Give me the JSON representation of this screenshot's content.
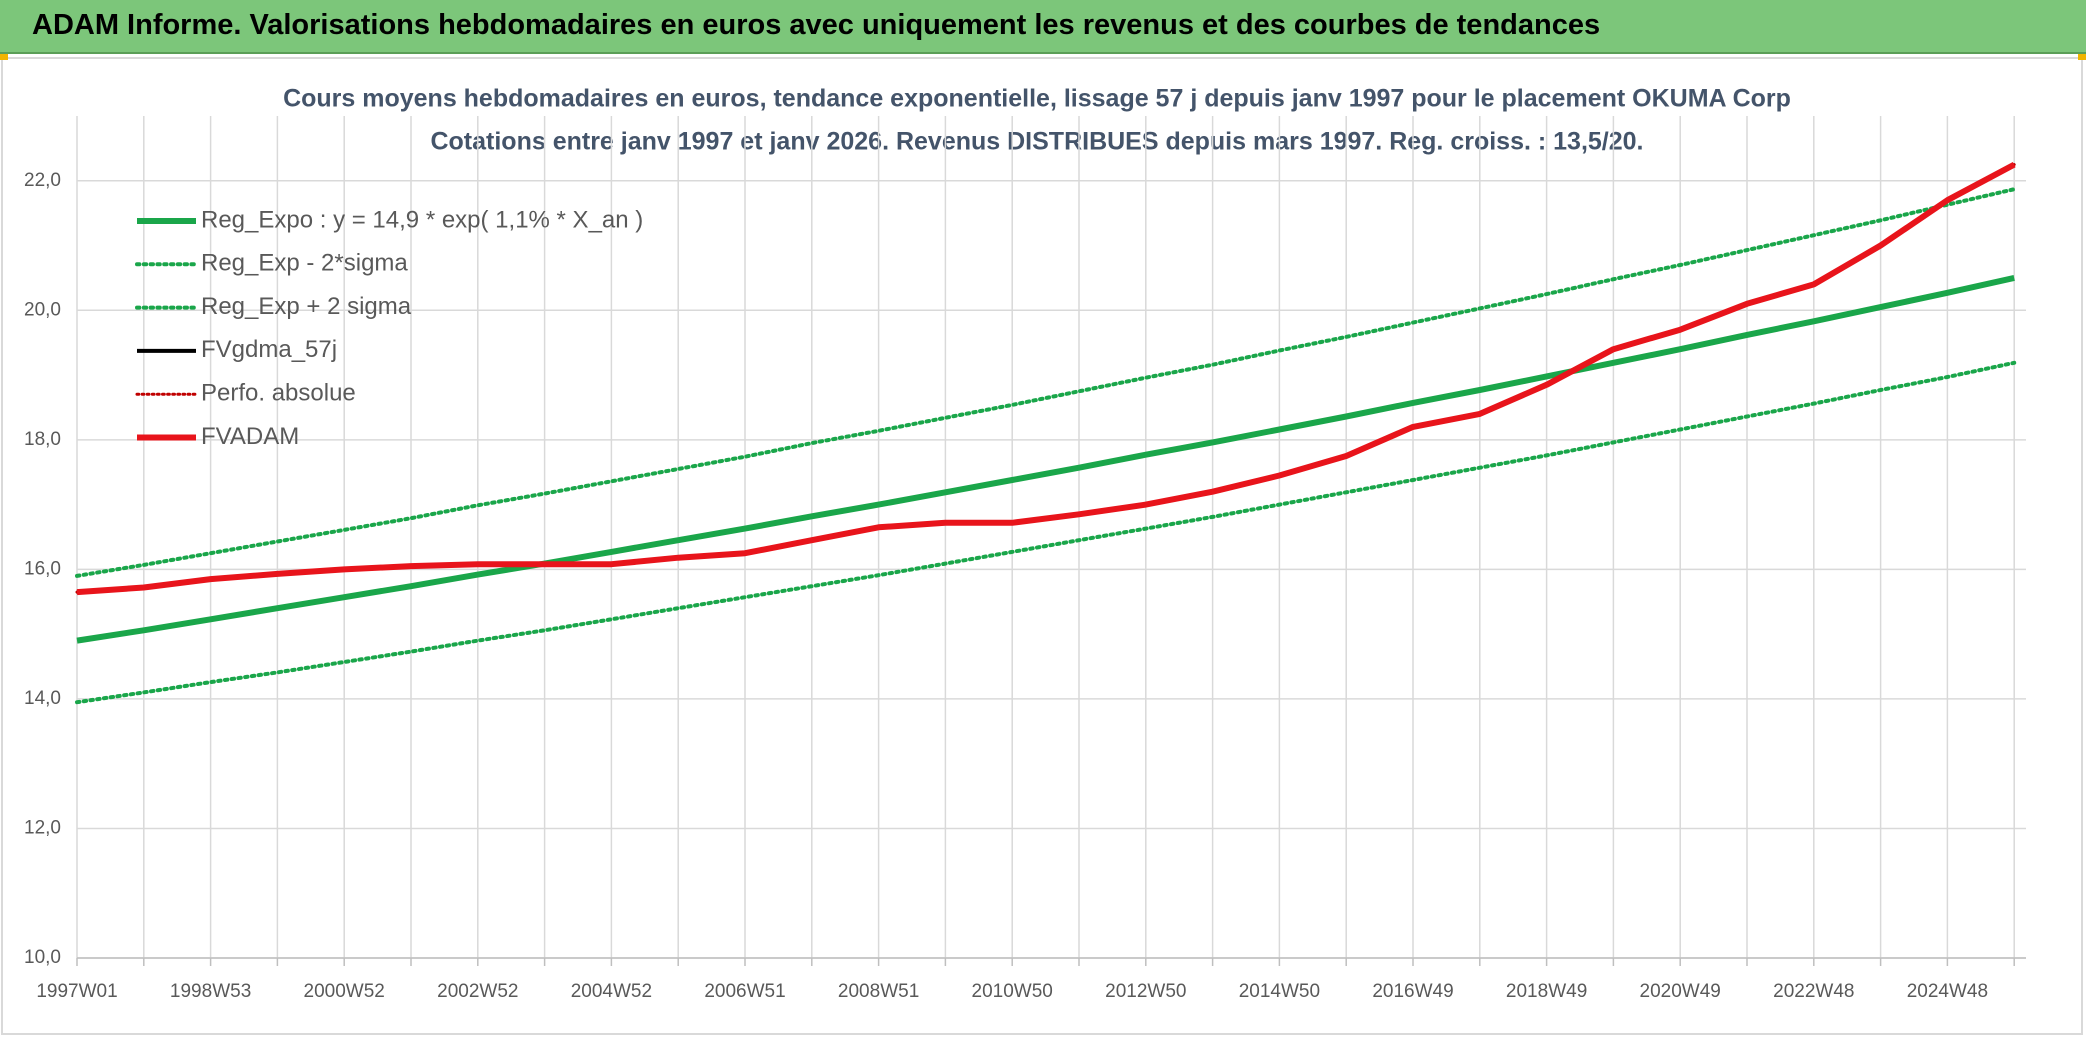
{
  "header": {
    "title": "ADAM Informe. Valorisations hebdomadaires en euros avec uniquement les revenus et des courbes de tendances"
  },
  "chart_data": {
    "type": "line",
    "title": "Cours moyens hebdomadaires en euros, tendance exponentielle, lissage 57 j depuis janv 1997 pour le placement OKUMA Corp",
    "subtitle": "Cotations entre janv 1997 et janv 2026. Revenus DISTRIBUES depuis mars 1997. Reg. croiss. : 13,5/20.",
    "categories": [
      "1997W01",
      null,
      "1998W53",
      null,
      "2000W52",
      null,
      "2002W52",
      null,
      "2004W52",
      null,
      "2006W51",
      null,
      "2008W51",
      null,
      "2010W50",
      null,
      "2012W50",
      null,
      "2014W50",
      null,
      "2016W49",
      null,
      "2018W49",
      null,
      "2020W49",
      null,
      "2022W48",
      null,
      "2024W48",
      null
    ],
    "ylim": [
      10,
      23
    ],
    "yticks": [
      {
        "value": 10,
        "label": "10,0"
      },
      {
        "value": 12,
        "label": "12,0"
      },
      {
        "value": 14,
        "label": "14,0"
      },
      {
        "value": 16,
        "label": "16,0"
      },
      {
        "value": 18,
        "label": "18,0"
      },
      {
        "value": 20,
        "label": "20,0"
      },
      {
        "value": 22,
        "label": "22,0"
      }
    ],
    "grid": true,
    "legend": "top-left",
    "series": [
      {
        "name": "Reg_Expo : y = 14,9 * exp( 1,1% *  X_an )",
        "color": "#1aa64a",
        "line_style": "solid",
        "width": 6,
        "values": [
          14.9,
          15.06,
          15.23,
          15.4,
          15.57,
          15.74,
          15.92,
          16.09,
          16.27,
          16.45,
          16.63,
          16.82,
          17.0,
          17.19,
          17.38,
          17.57,
          17.77,
          17.96,
          18.16,
          18.36,
          18.57,
          18.77,
          18.98,
          19.19,
          19.4,
          19.62,
          19.83,
          20.05,
          20.27,
          20.5
        ]
      },
      {
        "name": "Reg_Exp - 2*sigma",
        "color": "#1aa64a",
        "line_style": "dotted",
        "width": 4,
        "values": [
          13.95,
          14.1,
          14.26,
          14.41,
          14.57,
          14.73,
          14.9,
          15.06,
          15.23,
          15.4,
          15.57,
          15.74,
          15.91,
          16.09,
          16.27,
          16.45,
          16.63,
          16.81,
          17.0,
          17.19,
          17.38,
          17.57,
          17.76,
          17.96,
          18.16,
          18.36,
          18.56,
          18.77,
          18.97,
          19.19
        ]
      },
      {
        "name": "Reg_Exp + 2 sigma",
        "color": "#1aa64a",
        "line_style": "dotted",
        "width": 4,
        "values": [
          15.9,
          16.07,
          16.25,
          16.43,
          16.61,
          16.79,
          16.99,
          17.17,
          17.36,
          17.55,
          17.74,
          17.95,
          18.14,
          18.34,
          18.54,
          18.75,
          18.96,
          19.16,
          19.38,
          19.59,
          19.81,
          20.03,
          20.25,
          20.48,
          20.7,
          20.93,
          21.16,
          21.39,
          21.63,
          21.87
        ]
      },
      {
        "name": "FVgdma_57j",
        "color": "#000000",
        "line_style": "solid",
        "width": 4,
        "values": [
          15.65,
          15.72,
          15.85,
          15.93,
          16.0,
          16.05,
          16.08,
          16.08,
          16.08,
          16.18,
          16.25,
          16.45,
          16.65,
          16.72,
          16.72,
          16.85,
          17.0,
          17.2,
          17.45,
          17.75,
          18.2,
          18.4,
          18.85,
          19.4,
          19.7,
          20.1,
          20.4,
          21.0,
          21.7,
          22.25
        ]
      },
      {
        "name": "Perfo. absolue",
        "color": "#c00000",
        "line_style": "dotted",
        "width": 3,
        "values": [
          15.65,
          15.72,
          15.85,
          15.93,
          16.0,
          16.05,
          16.08,
          16.08,
          16.08,
          16.18,
          16.25,
          16.45,
          16.65,
          16.72,
          16.72,
          16.85,
          17.0,
          17.2,
          17.45,
          17.75,
          18.2,
          18.4,
          18.85,
          19.4,
          19.7,
          20.1,
          20.4,
          21.0,
          21.7,
          22.25
        ]
      },
      {
        "name": "FVADAM",
        "color": "#e8141b",
        "line_style": "solid",
        "width": 6,
        "values": [
          15.65,
          15.72,
          15.85,
          15.93,
          16.0,
          16.05,
          16.08,
          16.08,
          16.08,
          16.18,
          16.25,
          16.45,
          16.65,
          16.72,
          16.72,
          16.85,
          17.0,
          17.2,
          17.45,
          17.75,
          18.2,
          18.4,
          18.85,
          19.4,
          19.7,
          20.1,
          20.4,
          21.0,
          21.7,
          22.25
        ]
      }
    ]
  }
}
